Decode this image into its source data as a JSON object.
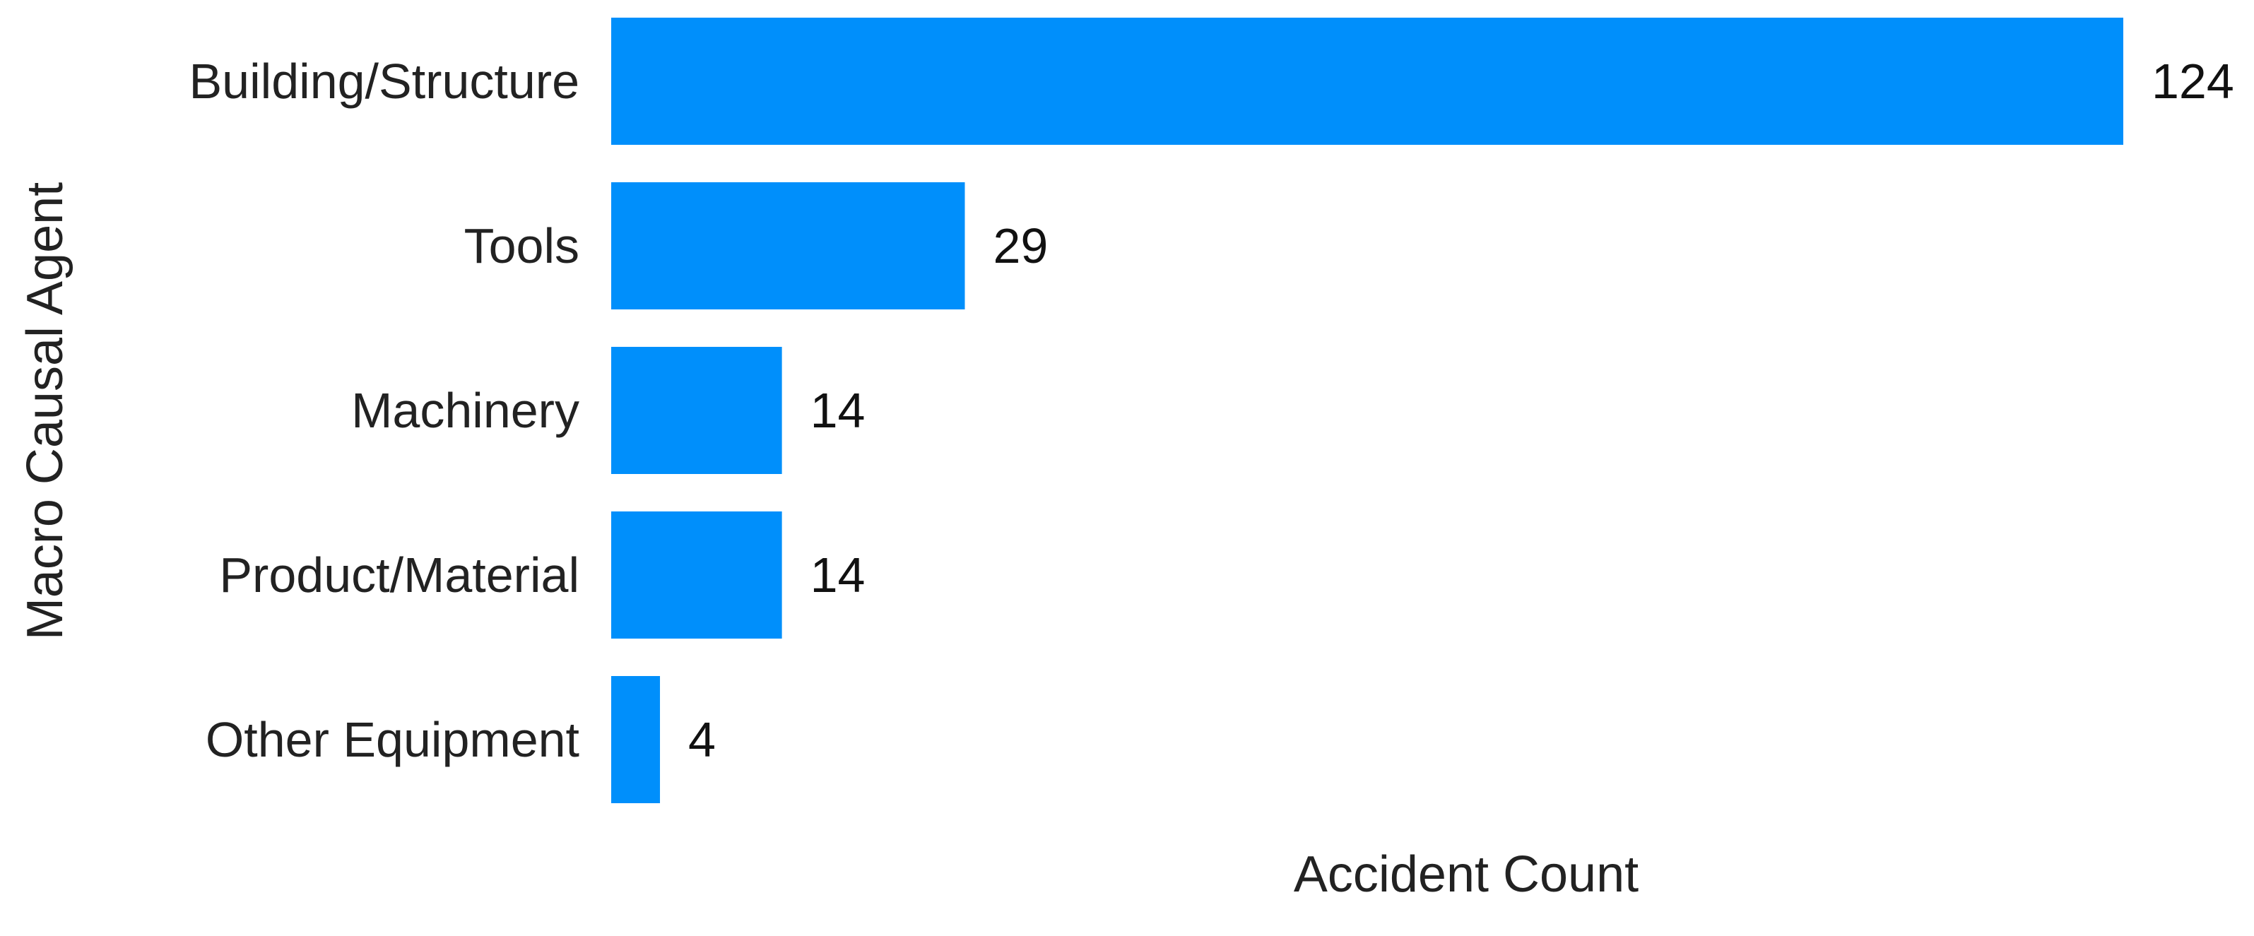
{
  "chart_data": {
    "type": "bar",
    "orientation": "horizontal",
    "categories": [
      "Building/Structure",
      "Tools",
      "Machinery",
      "Product/Material",
      "Other Equipment"
    ],
    "values": [
      124,
      29,
      14,
      14,
      4
    ],
    "data_labels": [
      "124",
      "29",
      "14",
      "14",
      "4"
    ],
    "xlabel": "Accident Count",
    "ylabel": "Macro Causal Agent",
    "xlim": [
      0,
      124
    ],
    "grid": false,
    "legend": "none",
    "bar_color": "#008FFB"
  }
}
